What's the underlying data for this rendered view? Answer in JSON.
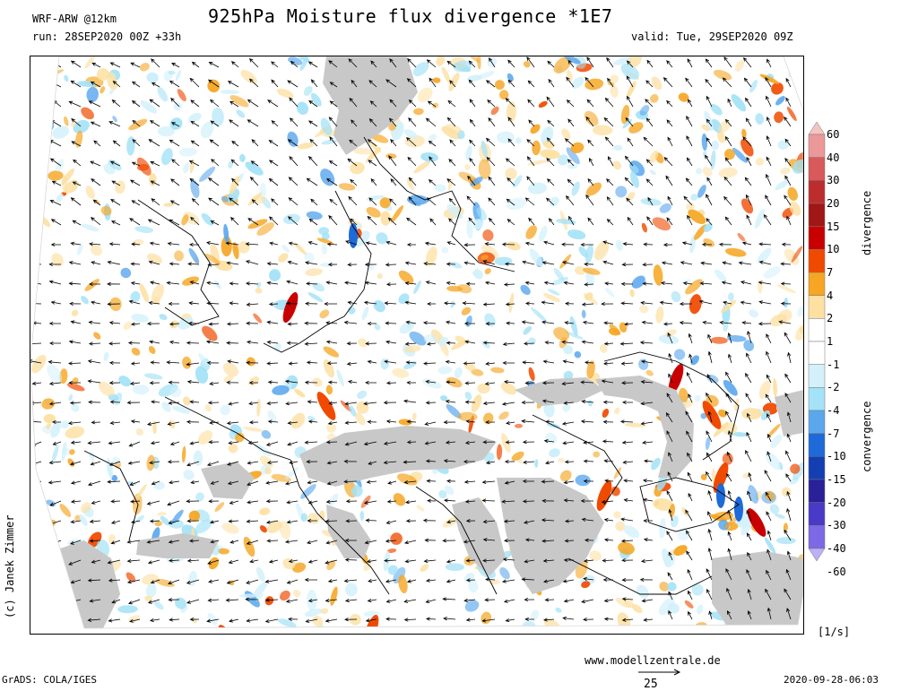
{
  "header": {
    "model": "WRF-ARW @12km",
    "run": "run: 28SEP2020 00Z +33h",
    "title": "925hPa Moisture flux divergence *1E7",
    "valid": "valid: Tue, 29SEP2020 09Z"
  },
  "side": {
    "copyright": "(c) Janek Zimmer"
  },
  "colorbar": {
    "divergence_label": "divergence",
    "convergence_label": "convergence",
    "units": "[1/s]",
    "levels": [
      "60",
      "40",
      "30",
      "20",
      "15",
      "10",
      "7",
      "4",
      "2",
      "1",
      "-1",
      "-2",
      "-4",
      "-7",
      "-10",
      "-15",
      "-20",
      "-30",
      "-40",
      "-60"
    ],
    "colors": [
      "#f6c3c3",
      "#ec9898",
      "#d85a5a",
      "#bd2d2d",
      "#a11616",
      "#c80000",
      "#f04a00",
      "#f6a623",
      "#fde0a2",
      "#ffffff",
      "#ffffff",
      "#d3f1fb",
      "#a4e2f7",
      "#5aa7ee",
      "#1e6ad8",
      "#133fb2",
      "#2a2098",
      "#4a3ac8",
      "#7d68e6",
      "#bcb0f6"
    ]
  },
  "map": {
    "land_color": "#c8c8c8",
    "border_color": "#000000",
    "arrow_color": "#000000"
  },
  "footer": {
    "website": "www.modellzentrale.de",
    "vector_reference": "25",
    "grads": "GrADS: COLA/IGES",
    "datestamp": "2020-09-28-06:03"
  }
}
